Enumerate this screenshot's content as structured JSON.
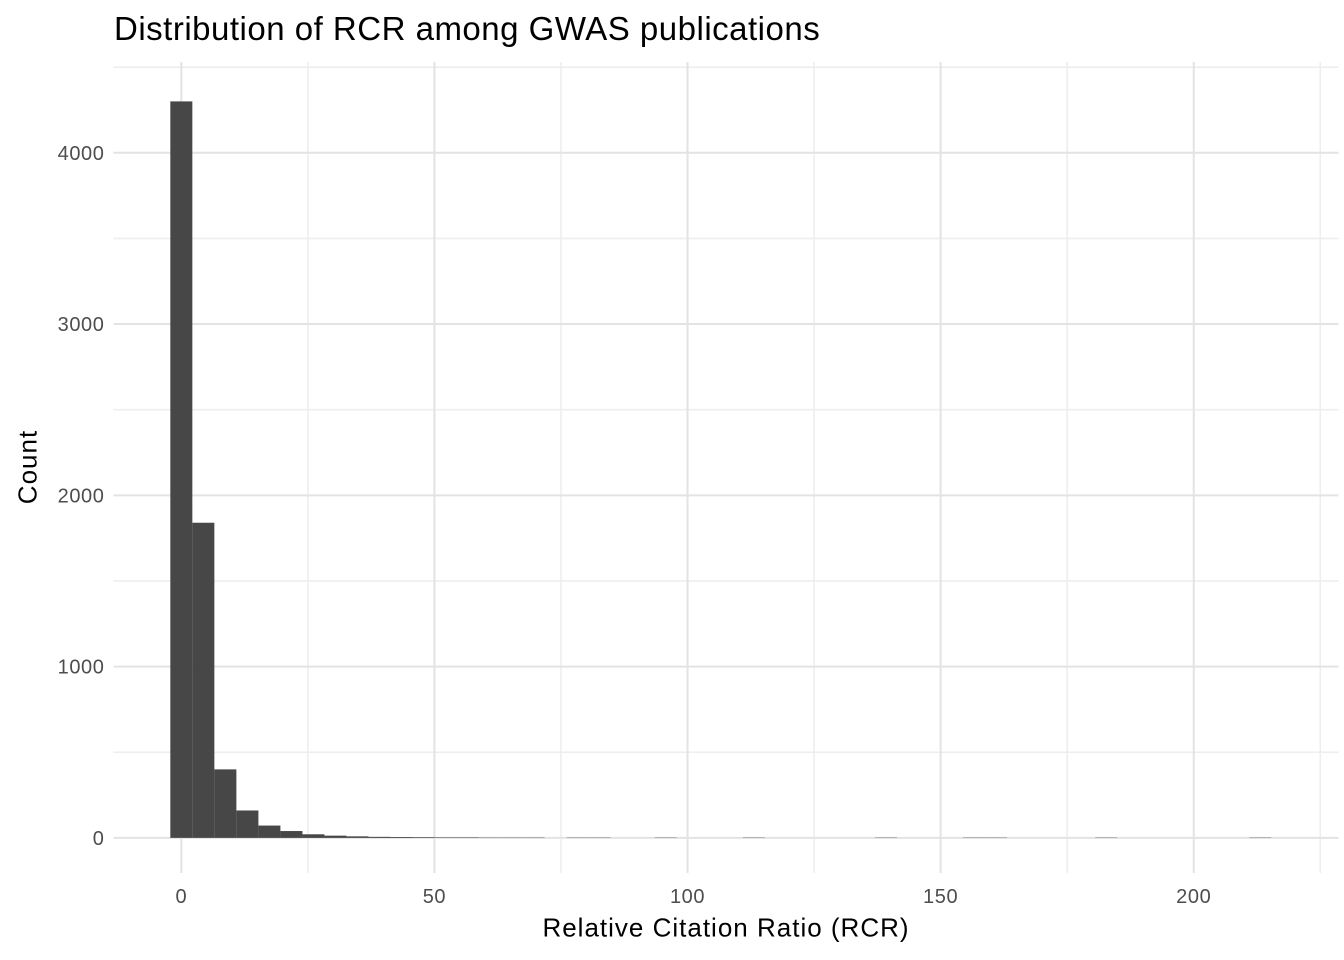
{
  "chart_data": {
    "type": "histogram",
    "title": "Distribution of RCR among GWAS publications",
    "xlabel": "Relative Citation Ratio (RCR)",
    "ylabel": "Count",
    "legend": "none",
    "grid": true,
    "x_major_ticks": [
      0,
      50,
      100,
      150,
      200
    ],
    "x_minor_gridlines": [
      25,
      75,
      125,
      175,
      225
    ],
    "y_major_ticks": [
      0,
      1000,
      2000,
      3000,
      4000
    ],
    "y_minor_gridlines": [
      500,
      1500,
      2500,
      3500,
      4500
    ],
    "xlim": [
      -13.4,
      228.6
    ],
    "ylim": [
      -205,
      4530
    ],
    "binwidth": 4.35,
    "colors": {
      "bar": "#474747",
      "grid_major": "#e3e3e3",
      "grid_minor": "#eeeeee",
      "tick_label": "#4d4d4d",
      "text": "#000000",
      "background": "#ffffff"
    },
    "bins": [
      {
        "x": 0,
        "count": 4300
      },
      {
        "x": 4.35,
        "count": 1840
      },
      {
        "x": 8.7,
        "count": 400
      },
      {
        "x": 13.05,
        "count": 160
      },
      {
        "x": 17.4,
        "count": 72
      },
      {
        "x": 21.75,
        "count": 40
      },
      {
        "x": 26.1,
        "count": 21
      },
      {
        "x": 30.45,
        "count": 13
      },
      {
        "x": 34.8,
        "count": 9
      },
      {
        "x": 39.15,
        "count": 6
      },
      {
        "x": 43.5,
        "count": 5
      },
      {
        "x": 47.85,
        "count": 4
      },
      {
        "x": 52.2,
        "count": 3
      },
      {
        "x": 56.55,
        "count": 3
      },
      {
        "x": 60.9,
        "count": 2
      },
      {
        "x": 65.25,
        "count": 2
      },
      {
        "x": 69.6,
        "count": 2
      },
      {
        "x": 78.3,
        "count": 1
      },
      {
        "x": 82.65,
        "count": 1
      },
      {
        "x": 95.7,
        "count": 1
      },
      {
        "x": 113.1,
        "count": 1
      },
      {
        "x": 139.2,
        "count": 1
      },
      {
        "x": 156.6,
        "count": 1
      },
      {
        "x": 160.95,
        "count": 1
      },
      {
        "x": 182.7,
        "count": 1
      },
      {
        "x": 213.15,
        "count": 1
      }
    ]
  }
}
